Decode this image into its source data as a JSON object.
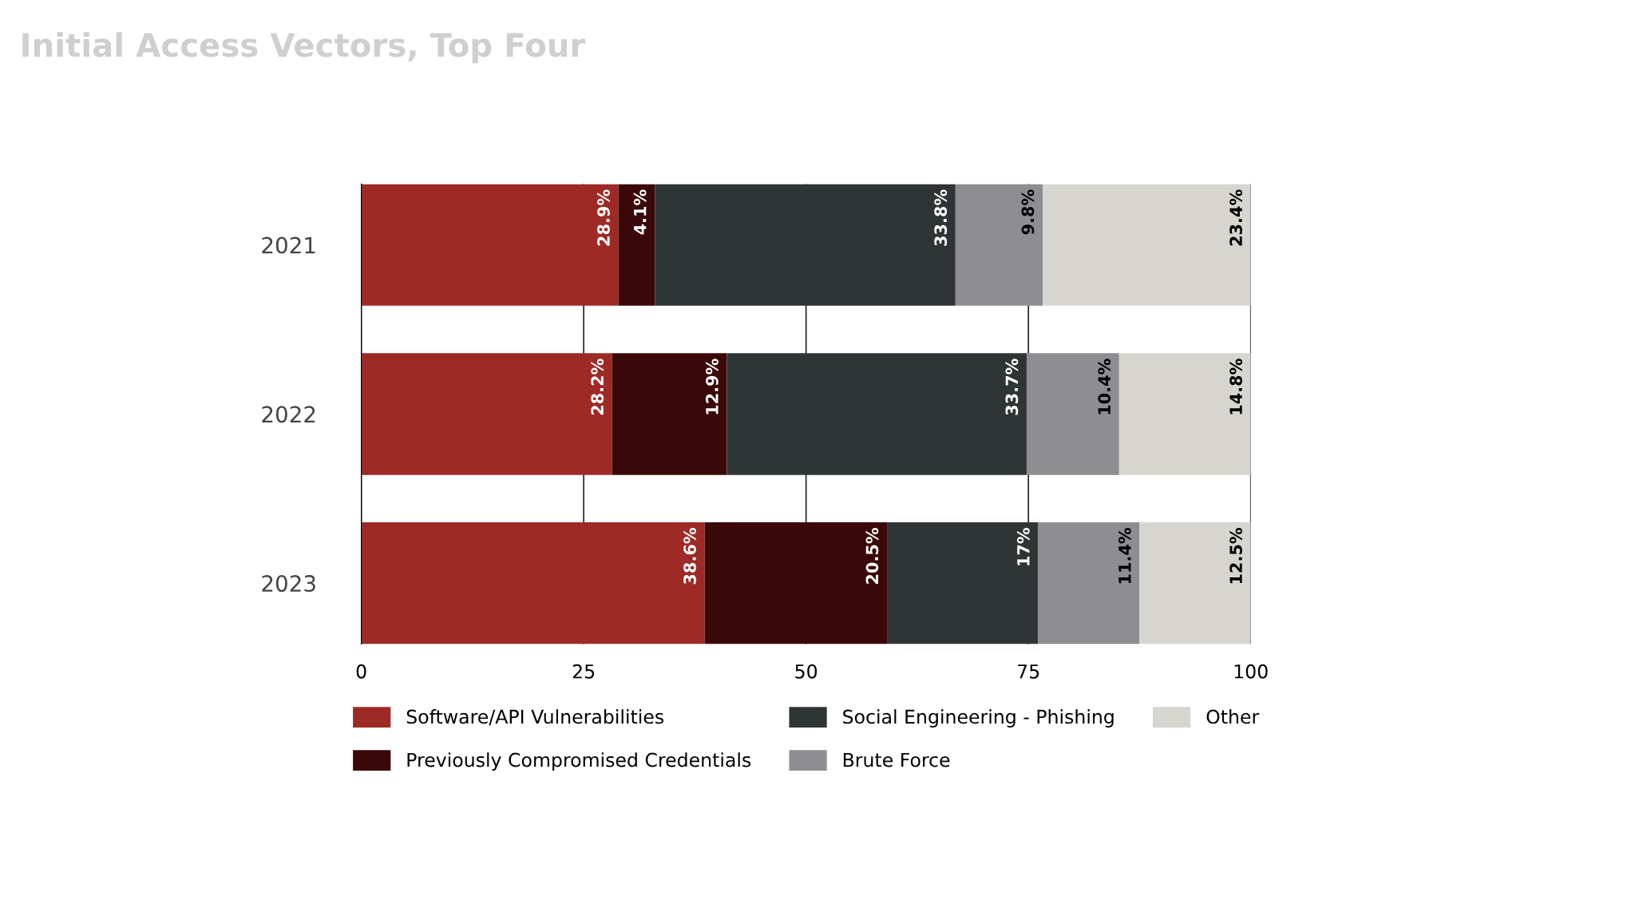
{
  "chart_data": {
    "type": "bar",
    "orientation": "horizontal",
    "stacked": true,
    "title": "Initial Access Vectors, Top Four",
    "categories": [
      "2021",
      "2022",
      "2023"
    ],
    "series": [
      {
        "name": "Software/API Vulnerabilities",
        "color": "#9e2a26",
        "values": [
          28.9,
          28.2,
          38.6
        ],
        "value_labels": [
          "28.9%",
          "28.2%",
          "38.6%"
        ]
      },
      {
        "name": "Previously Compromised Credentials",
        "color": "#3a0808",
        "values": [
          4.1,
          12.9,
          20.5
        ],
        "value_labels": [
          "4.1%",
          "12.9%",
          "20.5%"
        ]
      },
      {
        "name": "Social Engineering - Phishing",
        "color": "#2f3535",
        "values": [
          33.8,
          33.7,
          17
        ],
        "value_labels": [
          "33.8%",
          "33.7%",
          "17%"
        ]
      },
      {
        "name": "Brute Force",
        "color": "#8e8e92",
        "values": [
          9.8,
          10.4,
          11.4
        ],
        "value_labels": [
          "9.8%",
          "10.4%",
          "11.4%"
        ]
      },
      {
        "name": "Other",
        "color": "#d6d5cf",
        "values": [
          23.4,
          14.8,
          12.5
        ],
        "value_labels": [
          "23.4%",
          "14.8%",
          "12.5%"
        ]
      }
    ],
    "xlim": [
      0,
      100
    ],
    "xticks": [
      0,
      25,
      50,
      75,
      100
    ],
    "grid": "x",
    "legend": "bottom"
  }
}
